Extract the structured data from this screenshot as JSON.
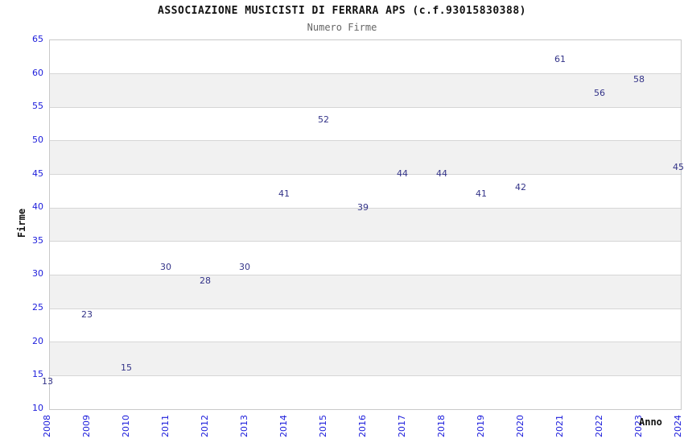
{
  "chart_data": {
    "type": "line",
    "title": "ASSOCIAZIONE MUSICISTI DI FERRARA APS (c.f.93015830388)",
    "subtitle": "Numero Firme",
    "xlabel": "Anno",
    "ylabel": "Firme",
    "categories": [
      "2008",
      "2009",
      "2010",
      "2011",
      "2012",
      "2013",
      "2014",
      "2015",
      "2016",
      "2017",
      "2018",
      "2019",
      "2020",
      "2021",
      "2022",
      "2023",
      "2024"
    ],
    "series": [
      {
        "name": "Numero Firme",
        "values": [
          13,
          23,
          15,
          30,
          28,
          30,
          41,
          52,
          39,
          44,
          44,
          41,
          42,
          61,
          56,
          58,
          45
        ]
      }
    ],
    "ylim": [
      10,
      65
    ],
    "ytick_step": 5,
    "grid": true,
    "legend_position": "none",
    "data_labels_visible": true,
    "colors": {
      "line": "#7fb2e8",
      "tick_label": "#1c1cdb",
      "data_label": "#333388",
      "band_gray": "#f1f1f1",
      "band_white": "#ffffff",
      "gridline": "#d6d6d6",
      "plot_border": "#c9c9c9",
      "title": "#111111",
      "subtitle": "#666666",
      "axis_title": "#111111"
    }
  }
}
